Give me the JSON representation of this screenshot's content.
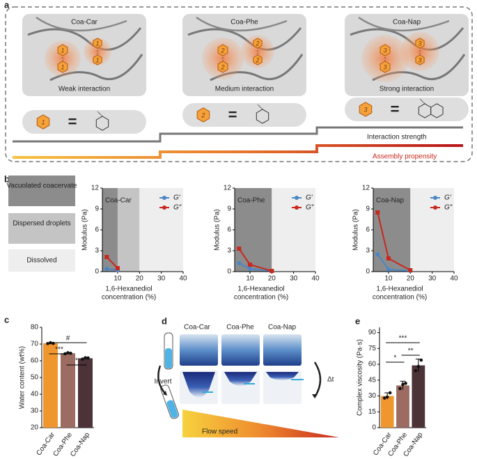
{
  "panel_labels": [
    "a",
    "b",
    "c",
    "d",
    "e"
  ],
  "panel_a": {
    "groups": [
      {
        "name": "Coa-Car",
        "caption": "Weak interaction",
        "unit": "1"
      },
      {
        "name": "Coa-Phe",
        "caption": "Medium interaction",
        "unit": "2"
      },
      {
        "name": "Coa-Nap",
        "caption": "Strong interaction",
        "unit": "3"
      }
    ],
    "equals": "=",
    "strength_label": "Interaction strength",
    "propensity_label": "Assembly propensity"
  },
  "panel_b_states": [
    "Vacuolated coacervate",
    "Dispersed droplets",
    "Dissolved"
  ],
  "panel_d": {
    "samples": [
      "Coa-Car",
      "Coa-Phe",
      "Coa-Nap"
    ],
    "invert": "Invert",
    "delta_t": "Δt",
    "flow": "Flow speed"
  },
  "chart_data": [
    {
      "type": "line",
      "title": "Coa-Car",
      "ylabel": "Modulus (Pa)",
      "xlabel": [
        "1,6-Hexanediol",
        "concentration (%)"
      ],
      "x": [
        5,
        10
      ],
      "xlim": [
        3,
        40
      ],
      "xticks": [
        10,
        20,
        30,
        40
      ],
      "ylim": [
        0,
        12
      ],
      "yticks": [
        0,
        3,
        6,
        9,
        12
      ],
      "regions": [
        {
          "from": 3,
          "to": 10,
          "color": "#8c8c8c"
        },
        {
          "from": 10,
          "to": 20,
          "color": "#c4c4c4"
        },
        {
          "from": 20,
          "to": 40,
          "color": "#eeeeee"
        }
      ],
      "series": [
        {
          "name": "G′",
          "color": "#4a86c5",
          "marker": "circle",
          "values": [
            0.4,
            0.2
          ]
        },
        {
          "name": "G″",
          "color": "#c8281e",
          "marker": "square",
          "values": [
            2.1,
            0.5
          ]
        }
      ]
    },
    {
      "type": "line",
      "title": "Coa-Phe",
      "ylabel": "Modulus (Pa)",
      "xlabel": [
        "1,6-Hexanediol",
        "concentration (%)"
      ],
      "x": [
        5,
        10,
        20
      ],
      "xlim": [
        3,
        40
      ],
      "xticks": [
        10,
        20,
        30,
        40
      ],
      "ylim": [
        0,
        12
      ],
      "yticks": [
        0,
        3,
        6,
        9,
        12
      ],
      "regions": [
        {
          "from": 3,
          "to": 20,
          "color": "#8c8c8c"
        },
        {
          "from": 20,
          "to": 40,
          "color": "#eeeeee"
        }
      ],
      "series": [
        {
          "name": "G′",
          "color": "#4a86c5",
          "marker": "circle",
          "values": [
            1.2,
            0.4,
            0.1
          ]
        },
        {
          "name": "G″",
          "color": "#c8281e",
          "marker": "square",
          "values": [
            3.3,
            1.0,
            0.1
          ]
        }
      ]
    },
    {
      "type": "line",
      "title": "Coa-Nap",
      "ylabel": "Modulus (Pa)",
      "xlabel": [
        "1,6-Hexanediol",
        "concentration (%)"
      ],
      "x": [
        5,
        10,
        20
      ],
      "xlim": [
        3,
        40
      ],
      "xticks": [
        10,
        20,
        30,
        40
      ],
      "ylim": [
        0,
        12
      ],
      "yticks": [
        0,
        3,
        6,
        9,
        12
      ],
      "regions": [
        {
          "from": 3,
          "to": 20,
          "color": "#8c8c8c"
        },
        {
          "from": 20,
          "to": 40,
          "color": "#eeeeee"
        }
      ],
      "series": [
        {
          "name": "G′",
          "color": "#4a86c5",
          "marker": "circle",
          "values": [
            2.5,
            0.3,
            0.1
          ]
        },
        {
          "name": "G″",
          "color": "#c8281e",
          "marker": "square",
          "values": [
            8.5,
            1.9,
            0.2
          ]
        }
      ]
    },
    {
      "type": "bar",
      "ylabel": "Water content (wt%)",
      "categories": [
        "Coa-Car",
        "Coa-Phe",
        "Coa-Nap"
      ],
      "values": [
        70.5,
        64.5,
        61.5
      ],
      "colors": [
        "#f0962e",
        "#9c6b62",
        "#4b3338"
      ],
      "points": [
        [
          70.3,
          70.8,
          70.4
        ],
        [
          64.2,
          64.8,
          64.5
        ],
        [
          61.0,
          61.8,
          61.7
        ]
      ],
      "ylim": [
        20,
        80
      ],
      "yticks": [
        20,
        30,
        40,
        50,
        60,
        70,
        80
      ],
      "annotations": [
        {
          "label": "#",
          "from": 0,
          "to": 2
        },
        {
          "label": "***",
          "from": 0,
          "to": 1
        },
        {
          "label": "*",
          "from": 1,
          "to": 2
        }
      ]
    },
    {
      "type": "bar",
      "ylabel": "Complex viscosity (Pa·s)",
      "categories": [
        "Coa-Car",
        "Coa-Phe",
        "Coa-Nap"
      ],
      "values": [
        30,
        40,
        59
      ],
      "errors": [
        3,
        4,
        6
      ],
      "colors": [
        "#f0962e",
        "#9c6b62",
        "#4b3338"
      ],
      "points": [
        [
          28,
          29,
          33
        ],
        [
          37,
          41,
          42
        ],
        [
          54,
          58,
          64
        ]
      ],
      "ylim": [
        0,
        95
      ],
      "yticks": [
        0,
        15,
        30,
        45,
        60,
        75,
        90
      ],
      "annotations": [
        {
          "label": "***",
          "from": 0,
          "to": 2
        },
        {
          "label": "*",
          "from": 0,
          "to": 1
        },
        {
          "label": "**",
          "from": 1,
          "to": 2
        }
      ]
    }
  ]
}
